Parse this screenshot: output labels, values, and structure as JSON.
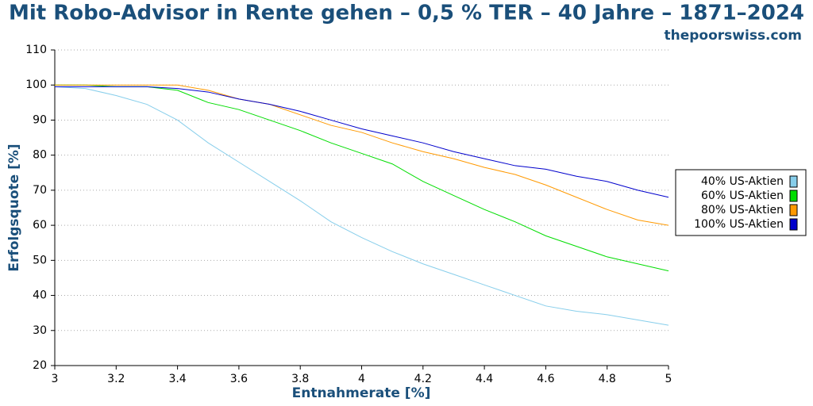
{
  "chart_data": {
    "type": "line",
    "title": "Mit Robo-Advisor in Rente gehen – 0,5 % TER – 40 Jahre – 1871–2024",
    "subtitle": "thepoorswiss.com",
    "x_label": "Entnahmerate [%]",
    "y_label": "Erfolgsquote [%]",
    "x": [
      3,
      3.1,
      3.2,
      3.3,
      3.4,
      3.5,
      3.6,
      3.7,
      3.8,
      3.9,
      4,
      4.1,
      4.2,
      4.3,
      4.4,
      4.5,
      4.6,
      4.7,
      4.8,
      4.9,
      5
    ],
    "series": [
      {
        "name": "40% US-Aktien",
        "color": "#87ceeb",
        "values": [
          99.5,
          99,
          97,
          94.5,
          90,
          83.5,
          78,
          72.5,
          67,
          61,
          56.5,
          52.5,
          49,
          46,
          43,
          40,
          37,
          35.5,
          34.5,
          33,
          31.5
        ]
      },
      {
        "name": "60% US-Aktien",
        "color": "#00dd00",
        "values": [
          100,
          100,
          99.5,
          99.5,
          98.5,
          95,
          93,
          90,
          87,
          83.5,
          80.5,
          77.5,
          72.5,
          68.5,
          64.5,
          61,
          57,
          54,
          51,
          49,
          47
        ]
      },
      {
        "name": "80% US-Aktien",
        "color": "#ff9900",
        "values": [
          100,
          100,
          100,
          100,
          100,
          98.5,
          96,
          94.5,
          91.5,
          88.5,
          86.5,
          83.5,
          81,
          79,
          76.5,
          74.5,
          71.5,
          68,
          64.5,
          61.5,
          60
        ]
      },
      {
        "name": "100% US-Aktien",
        "color": "#0000cc",
        "values": [
          99.5,
          99.5,
          99.5,
          99.5,
          99,
          98,
          96,
          94.5,
          92.5,
          90,
          87.5,
          85.5,
          83.5,
          81,
          79,
          77,
          76,
          74,
          72.5,
          70,
          68
        ]
      }
    ],
    "xlim": [
      3,
      5
    ],
    "xticks": [
      3,
      3.2,
      3.4,
      3.6,
      3.8,
      4,
      4.2,
      4.4,
      4.6,
      4.8,
      5
    ],
    "ylim": [
      20,
      110
    ],
    "yticks": [
      20,
      30,
      40,
      50,
      60,
      70,
      80,
      90,
      100,
      110
    ],
    "grid": true,
    "legend": "right"
  }
}
